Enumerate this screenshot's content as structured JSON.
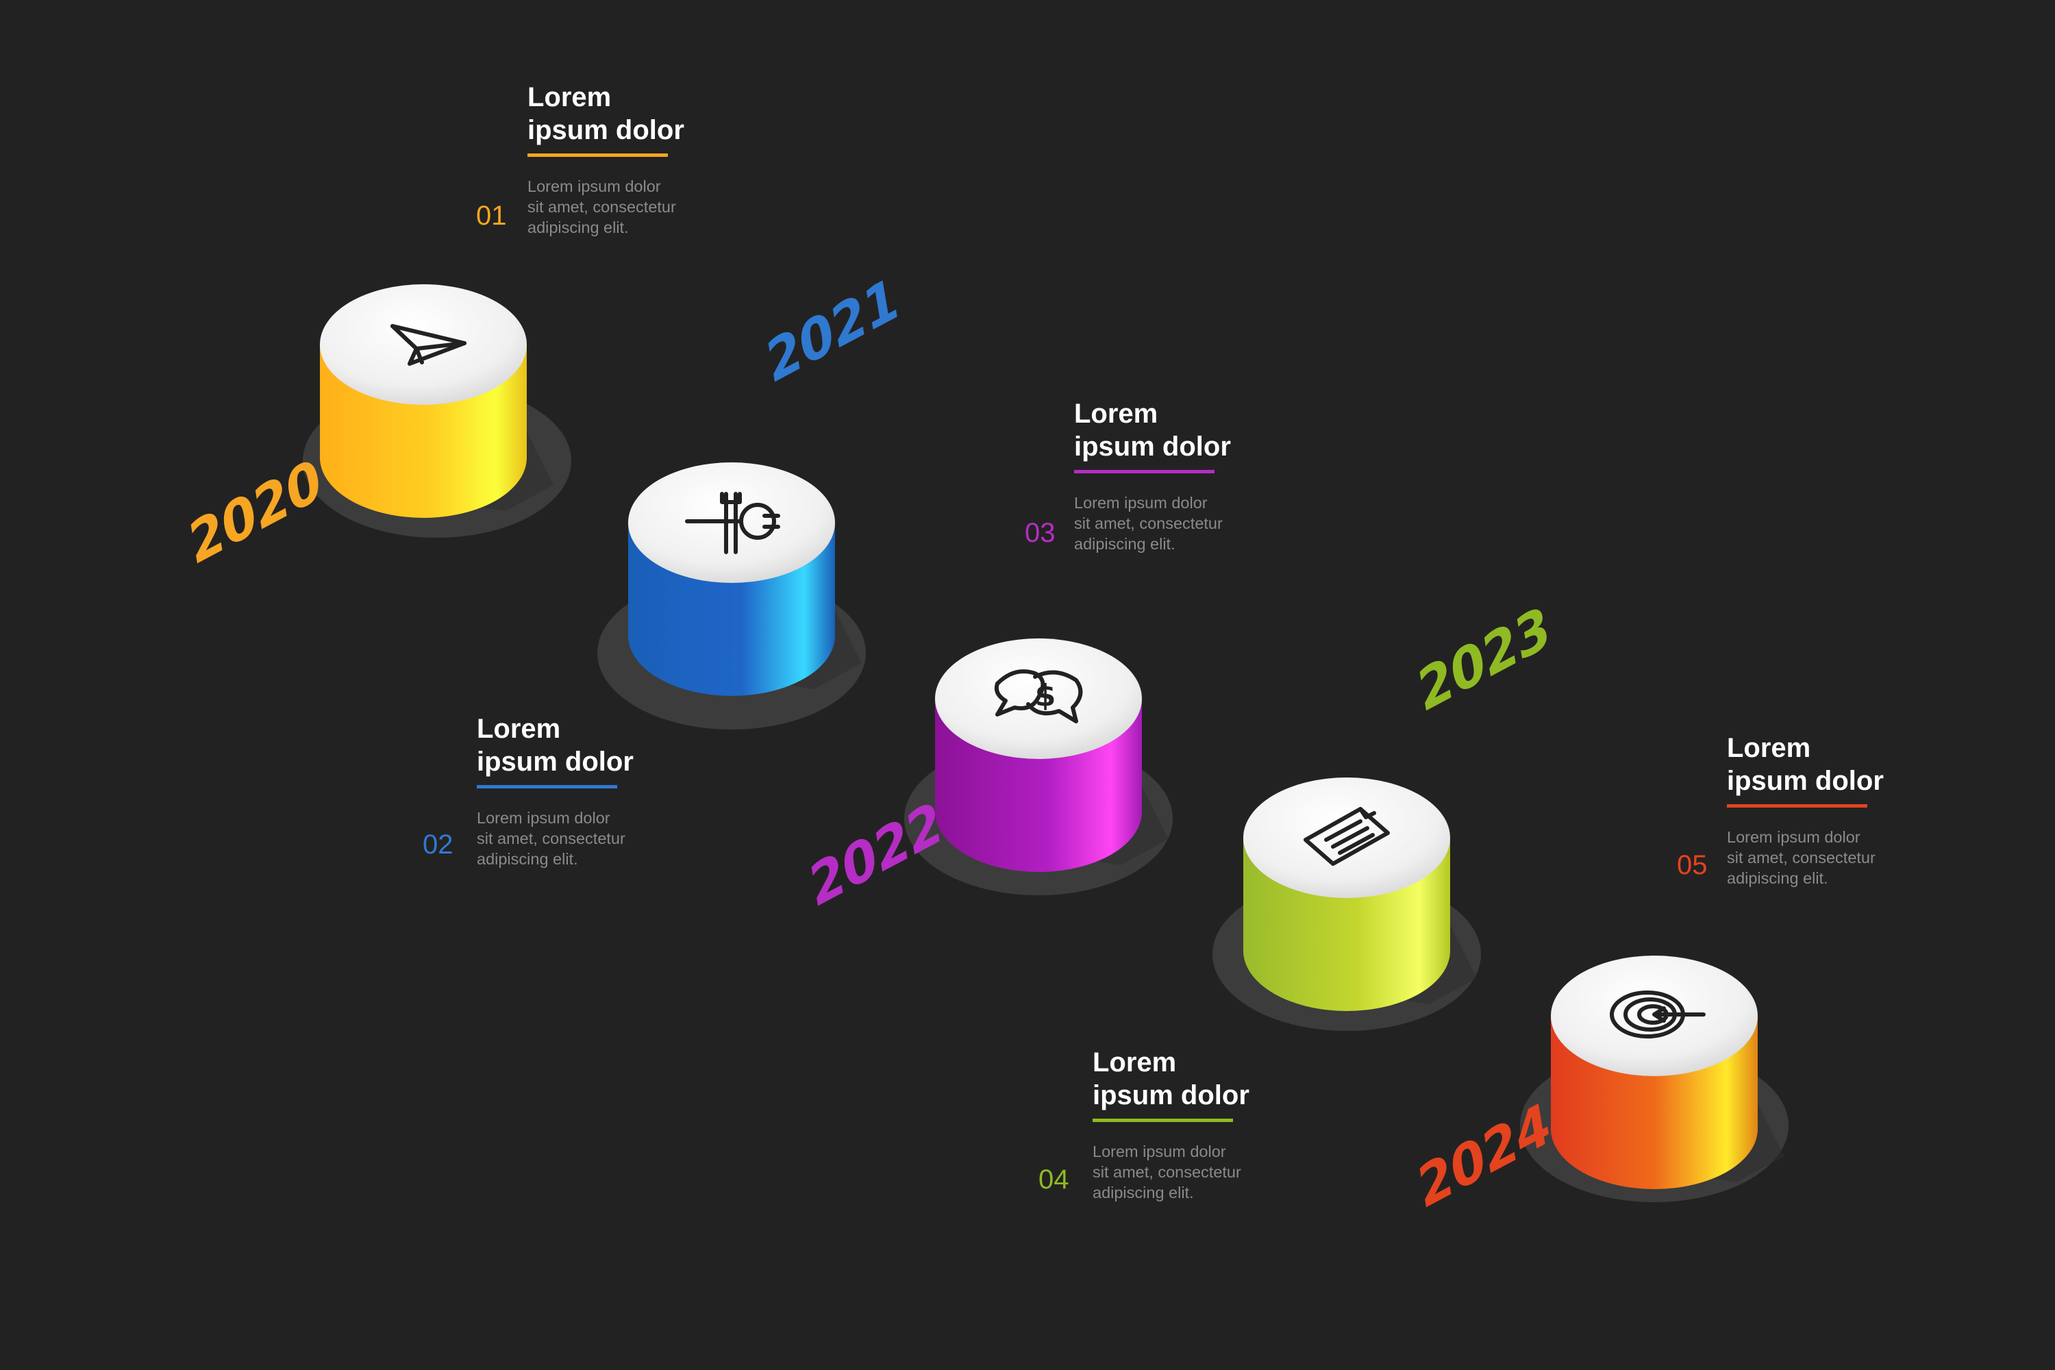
{
  "steps": [
    {
      "year": "2020",
      "number": "01",
      "color": "#f6a623",
      "title_line1": "Lorem",
      "title_line2": "ipsum dolor",
      "desc_line1": "Lorem ipsum dolor",
      "desc_line2": "sit amet, consectetur",
      "desc_line3": "adipiscing elit.",
      "icon": "paper-plane-icon"
    },
    {
      "year": "2021",
      "number": "02",
      "color": "#2f79d0",
      "title_line1": "Lorem",
      "title_line2": "ipsum dolor",
      "desc_line1": "Lorem ipsum dolor",
      "desc_line2": "sit amet, consectetur",
      "desc_line3": "adipiscing elit.",
      "icon": "tools-icon"
    },
    {
      "year": "2022",
      "number": "03",
      "color": "#b52dc4",
      "title_line1": "Lorem",
      "title_line2": "ipsum dolor",
      "desc_line1": "Lorem ipsum dolor",
      "desc_line2": "sit amet, consectetur",
      "desc_line3": "adipiscing elit.",
      "icon": "chat-money-icon"
    },
    {
      "year": "2023",
      "number": "04",
      "color": "#8fba23",
      "title_line1": "Lorem",
      "title_line2": "ipsum dolor",
      "desc_line1": "Lorem ipsum dolor",
      "desc_line2": "sit amet, consectetur",
      "desc_line3": "adipiscing elit.",
      "icon": "document-list-icon"
    },
    {
      "year": "2024",
      "number": "05",
      "color": "#e4431f",
      "title_line1": "Lorem",
      "title_line2": "ipsum dolor",
      "desc_line1": "Lorem ipsum dolor",
      "desc_line2": "sit amet, consectetur",
      "desc_line3": "adipiscing elit.",
      "icon": "target-arrow-icon"
    }
  ]
}
